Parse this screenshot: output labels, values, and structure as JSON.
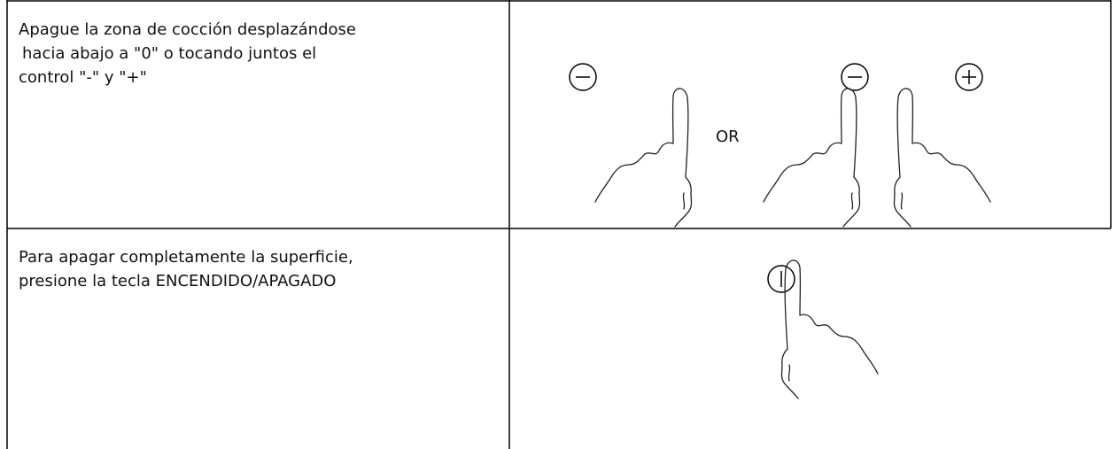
{
  "table": {
    "rows": [
      {
        "text": [
          "Apague la zona de cocción desplazándose",
          "hacia abajo a \"0\" o tocando juntos el",
          "control \"-\" y \"+\""
        ],
        "figure_label": "OR"
      },
      {
        "text": [
          "Para apagar completamente la superficie,",
          "presione la tecla ENCENDIDO/APAGADO"
        ]
      }
    ]
  }
}
